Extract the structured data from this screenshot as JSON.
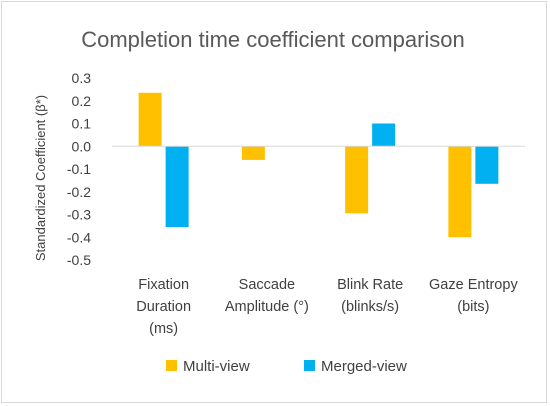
{
  "chart_data": {
    "type": "bar",
    "title": "Completion time coefficient comparison",
    "xlabel": "",
    "ylabel": "Standardized Coefficient (β*)",
    "ylim": [
      -0.5,
      0.3
    ],
    "yticks": [
      0.3,
      0.2,
      0.1,
      0.0,
      -0.1,
      -0.2,
      -0.3,
      -0.4,
      -0.5
    ],
    "ytick_labels": [
      "0.3",
      "0.2",
      "0.1",
      "0.0",
      "-0.1",
      "-0.2",
      "-0.3",
      "-0.4",
      "-0.5"
    ],
    "grid": false,
    "legend_position": "bottom",
    "categories": [
      [
        "Fixation",
        "Duration",
        "(ms)"
      ],
      [
        "Saccade",
        "Amplitude (°)"
      ],
      [
        "Blink Rate",
        "(blinks/s)"
      ],
      [
        "Gaze Entropy",
        "(bits)"
      ]
    ],
    "series": [
      {
        "name": "Multi-view",
        "color": "#FFC000",
        "values": [
          0.235,
          -0.06,
          -0.295,
          -0.4
        ]
      },
      {
        "name": "Merged-view",
        "color": "#00B0F0",
        "values": [
          -0.355,
          0.0,
          0.1,
          -0.165
        ]
      }
    ]
  }
}
